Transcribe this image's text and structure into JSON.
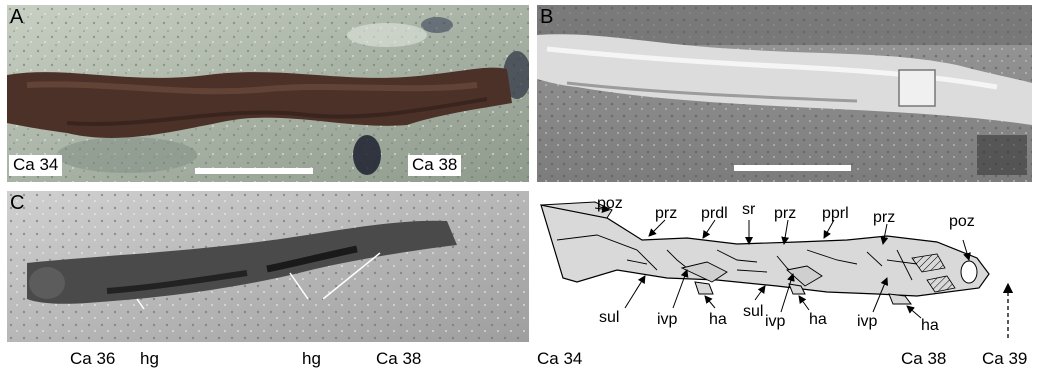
{
  "panels": {
    "a": {
      "tag": "A",
      "label_left": "Ca 34",
      "label_right": "Ca 38"
    },
    "b": {
      "tag": "B"
    },
    "c": {
      "tag": "C"
    },
    "d": {
      "labels": {
        "poz_left": "poz",
        "prz_1": "prz",
        "prdl": "prdl",
        "sr": "sr",
        "prz_2": "prz",
        "pprl": "pprl",
        "prz_3": "prz",
        "poz_right": "poz",
        "sul_1": "sul",
        "ivp_1": "ivp",
        "ha_1": "ha",
        "sul_2": "sul",
        "ivp_2": "ivp",
        "ha_2": "ha",
        "ivp_3": "ivp",
        "ha_3": "ha"
      }
    }
  },
  "bottom_labels": {
    "ca36": "Ca 36",
    "hg_1": "hg",
    "hg_2": "hg",
    "ca38_c": "Ca 38",
    "ca34_d": "Ca 34",
    "ca38_d": "Ca 38",
    "ca39": "Ca 39"
  },
  "colors": {
    "bone_fill": "#d9d9d9",
    "matrix_a": "#a8b0a4",
    "bone_a": "#4a2f28",
    "matrix_b": "#8a8a8a",
    "matrix_c": "#b8b8b8"
  }
}
